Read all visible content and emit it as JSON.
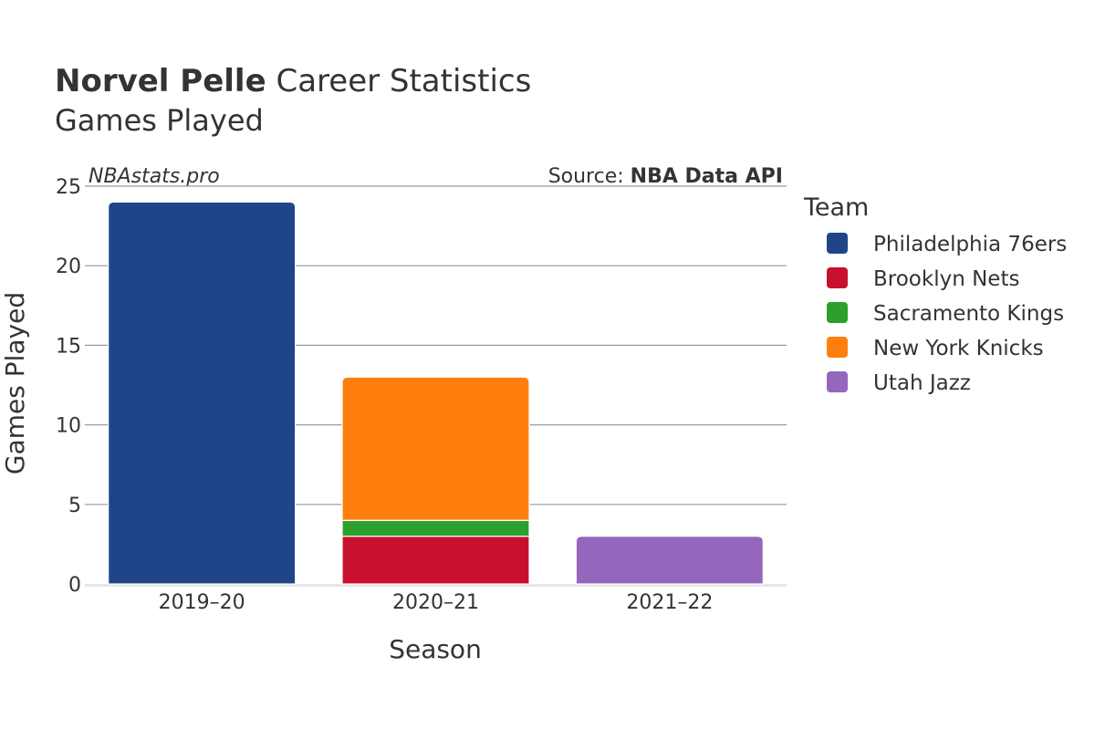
{
  "header": {
    "player_name": "Norvel Pelle",
    "title_rest": "Career Statistics",
    "subtitle": "Games Played"
  },
  "watermark": "NBAstats.pro",
  "source": {
    "prefix": "Source: ",
    "name": "NBA Data API"
  },
  "legend": {
    "title": "Team",
    "items": [
      {
        "label": "Philadelphia 76ers",
        "color": "#1f4588"
      },
      {
        "label": "Brooklyn Nets",
        "color": "#c8102e"
      },
      {
        "label": "Sacramento Kings",
        "color": "#2ca02c"
      },
      {
        "label": "New York Knicks",
        "color": "#ff7f0e"
      },
      {
        "label": "Utah Jazz",
        "color": "#9467bd"
      }
    ]
  },
  "chart_data": {
    "type": "bar",
    "stacked": true,
    "title": "Norvel Pelle Career Statistics",
    "subtitle": "Games Played",
    "xlabel": "Season",
    "ylabel": "Games Played",
    "categories": [
      "2019–20",
      "2020–21",
      "2021–22"
    ],
    "ylim": [
      0,
      25
    ],
    "yticks": [
      0,
      5,
      10,
      15,
      20,
      25
    ],
    "series": [
      {
        "name": "Philadelphia 76ers",
        "color": "#1f4588",
        "values": [
          24,
          0,
          0
        ]
      },
      {
        "name": "Brooklyn Nets",
        "color": "#c8102e",
        "values": [
          0,
          3,
          0
        ]
      },
      {
        "name": "Sacramento Kings",
        "color": "#2ca02c",
        "values": [
          0,
          1,
          0
        ]
      },
      {
        "name": "New York Knicks",
        "color": "#ff7f0e",
        "values": [
          0,
          9,
          0
        ]
      },
      {
        "name": "Utah Jazz",
        "color": "#9467bd",
        "values": [
          0,
          0,
          3
        ]
      }
    ]
  }
}
